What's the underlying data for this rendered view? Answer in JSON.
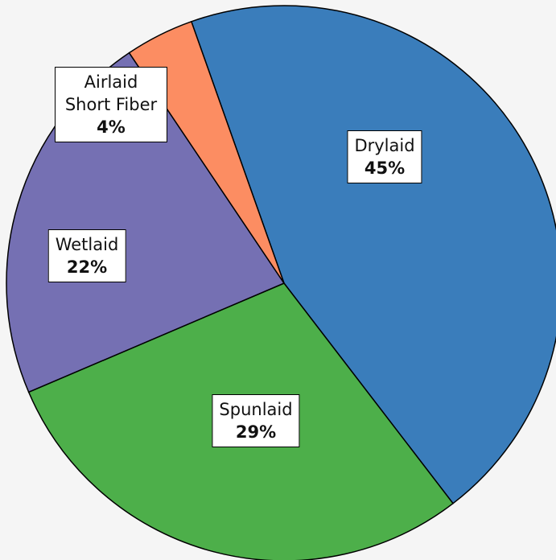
{
  "chart_data": {
    "type": "pie",
    "categories": [
      "Drylaid",
      "Spunlaid",
      "Wetlaid",
      "Airlaid Short Fiber"
    ],
    "values": [
      45,
      29,
      22,
      4
    ],
    "value_labels": [
      "45%",
      "29%",
      "22%",
      "4%"
    ],
    "colors": [
      "#3a7dbb",
      "#4daf4a",
      "#7570b3",
      "#fc8d62"
    ]
  }
}
